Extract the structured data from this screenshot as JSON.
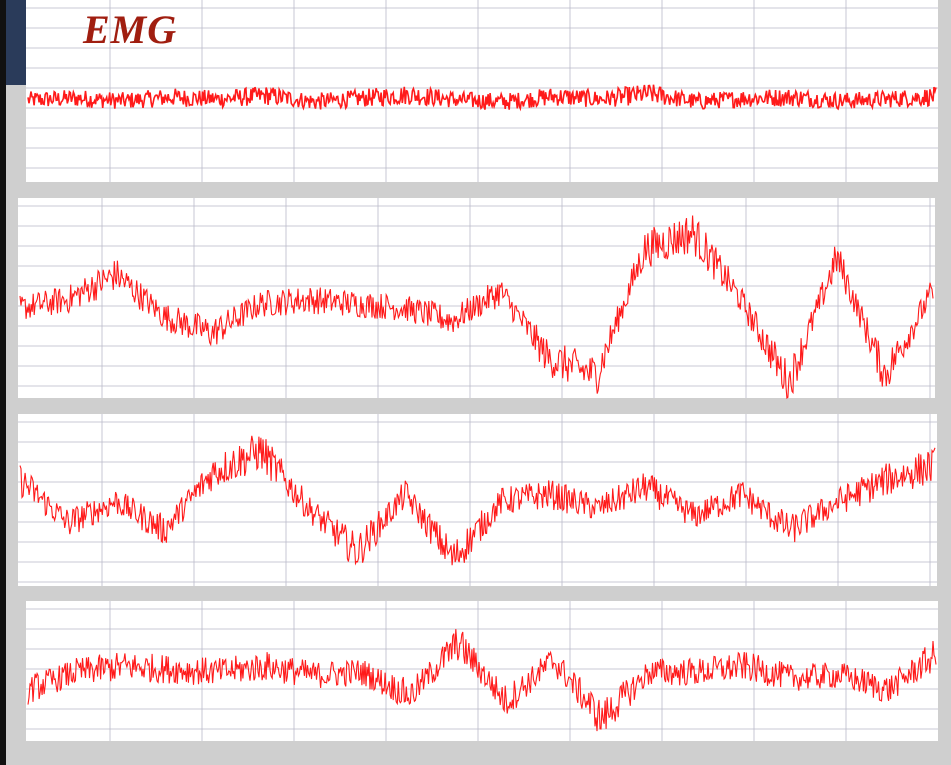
{
  "slide": {
    "title": "EMG",
    "title_color": "#a01e10",
    "trace_color": "#ff1a1a",
    "grid_color": "#b9b9c9",
    "panel_bg": "#ffffff",
    "background": "#cfcfcf",
    "header_strip": "#2a3b5a"
  },
  "chart_data": [
    {
      "type": "line",
      "title": "",
      "xlabel": "",
      "ylabel": "",
      "grid": true,
      "amplitude": "low",
      "description_points": [
        0,
        0.1,
        -0.05,
        0.15,
        0.05,
        0.25,
        -0.1,
        0.1,
        0.3,
        0,
        -0.1,
        0.2,
        0.05,
        0.35,
        -0.1,
        0.1,
        0.15,
        -0.05,
        0.05,
        0.2
      ]
    },
    {
      "type": "line",
      "title": "",
      "xlabel": "",
      "ylabel": "",
      "grid": true,
      "amplitude": "high",
      "description_points": [
        0,
        0.1,
        0.4,
        -0.1,
        -0.3,
        0.05,
        0.1,
        0.05,
        0,
        -0.15,
        0.2,
        -0.6,
        -0.8,
        0.7,
        0.9,
        0.1,
        -0.9,
        0.6,
        -0.8,
        0.2
      ]
    },
    {
      "type": "line",
      "title": "",
      "xlabel": "",
      "ylabel": "",
      "grid": true,
      "amplitude": "high",
      "description_points": [
        0.4,
        -0.2,
        0.1,
        -0.3,
        0.5,
        0.8,
        0,
        -0.6,
        0.2,
        -0.7,
        0.1,
        0.2,
        0,
        0.3,
        -0.1,
        0.2,
        -0.3,
        0.1,
        0.4,
        0.6
      ]
    },
    {
      "type": "line",
      "title": "",
      "xlabel": "",
      "ylabel": "",
      "grid": true,
      "amplitude": "high",
      "description_points": [
        -0.2,
        0.1,
        0.2,
        0.15,
        0.1,
        0.2,
        0.05,
        0.1,
        -0.3,
        0.6,
        -0.4,
        0.3,
        -0.7,
        0.1,
        0.1,
        0.2,
        0,
        0.05,
        -0.2,
        0.4
      ]
    }
  ]
}
